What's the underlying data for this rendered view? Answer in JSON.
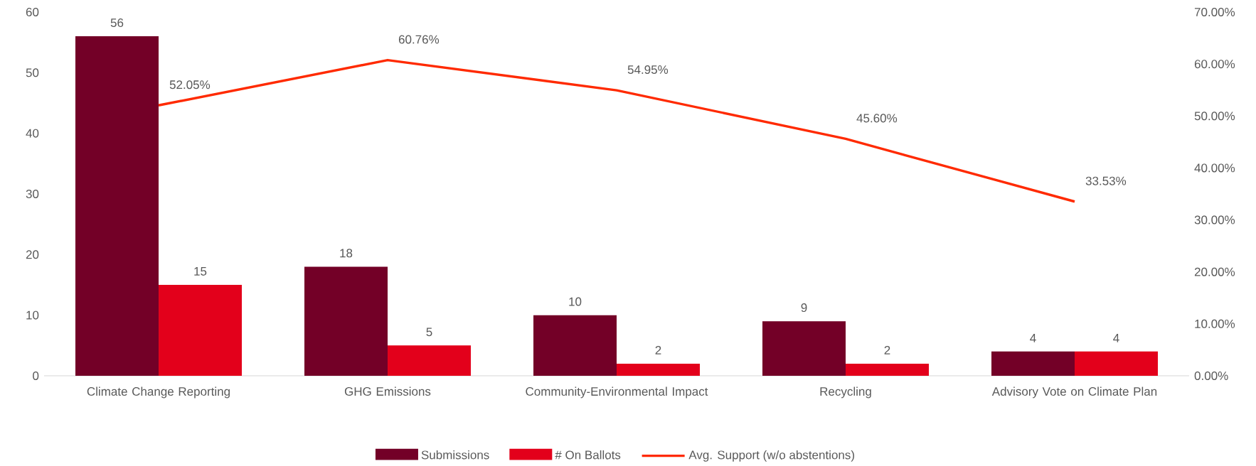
{
  "chart_data": {
    "type": "bar",
    "categories": [
      "Climate Change Reporting",
      "GHG Emissions",
      "Community-Environmental Impact",
      "Recycling",
      "Advisory Vote on Climate Plan"
    ],
    "series": [
      {
        "name": "Submissions",
        "color": "#730027",
        "values": [
          56,
          18,
          10,
          9,
          4
        ]
      },
      {
        "name": "# On Ballots",
        "color": "#e3001b",
        "values": [
          15,
          5,
          2,
          2,
          4
        ]
      },
      {
        "name": "Avg. Support (w/o abstentions)",
        "type": "line",
        "axis": "y2",
        "color": "#ff2a00",
        "values": [
          52.05,
          60.76,
          54.95,
          45.6,
          33.53
        ],
        "value_labels": [
          "52.05%",
          "60.76%",
          "54.95%",
          "45.60%",
          "33.53%"
        ]
      }
    ],
    "ylim": [
      0,
      60
    ],
    "yticks": [
      0,
      10,
      20,
      30,
      40,
      50,
      60
    ],
    "y2lim": [
      0,
      70
    ],
    "y2ticks": [
      {
        "value": 0,
        "label": "0.00%"
      },
      {
        "value": 10,
        "label": "10.00%"
      },
      {
        "value": 20,
        "label": "20.00%"
      },
      {
        "value": 30,
        "label": "30.00%"
      },
      {
        "value": 40,
        "label": "40.00%"
      },
      {
        "value": 50,
        "label": "50.00%"
      },
      {
        "value": 60,
        "label": "60.00%"
      },
      {
        "value": 70,
        "label": "70.00%"
      }
    ],
    "data_labels": true,
    "grid": false,
    "legend": "bottom"
  }
}
